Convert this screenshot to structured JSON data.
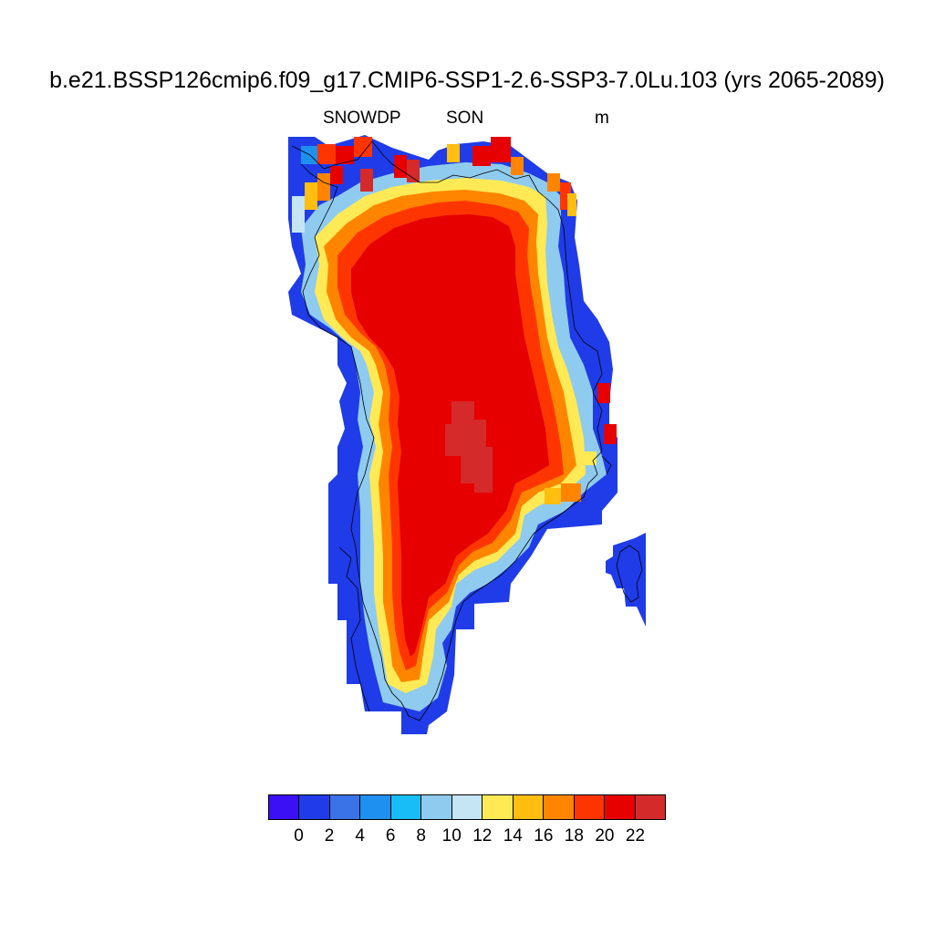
{
  "title": "b.e21.BSSP126cmip6.f09_g17.CMIP6-SSP1-2.6-SSP3-7.0Lu.103 (yrs 2065-2089)",
  "subtitle_left": "SNOWDP",
  "subtitle_center": "SON",
  "subtitle_right": "m",
  "colorbar": {
    "colors": [
      "#3b10f5",
      "#1f3ce8",
      "#3a72e8",
      "#1e90f0",
      "#18bdf7",
      "#8fcbef",
      "#c5e5f5",
      "#ffea55",
      "#ffbe10",
      "#ff8500",
      "#ff3500",
      "#e60000",
      "#d42a2a"
    ],
    "labels": [
      "0",
      "2",
      "4",
      "6",
      "8",
      "10",
      "12",
      "14",
      "16",
      "18",
      "20",
      "22"
    ]
  }
}
